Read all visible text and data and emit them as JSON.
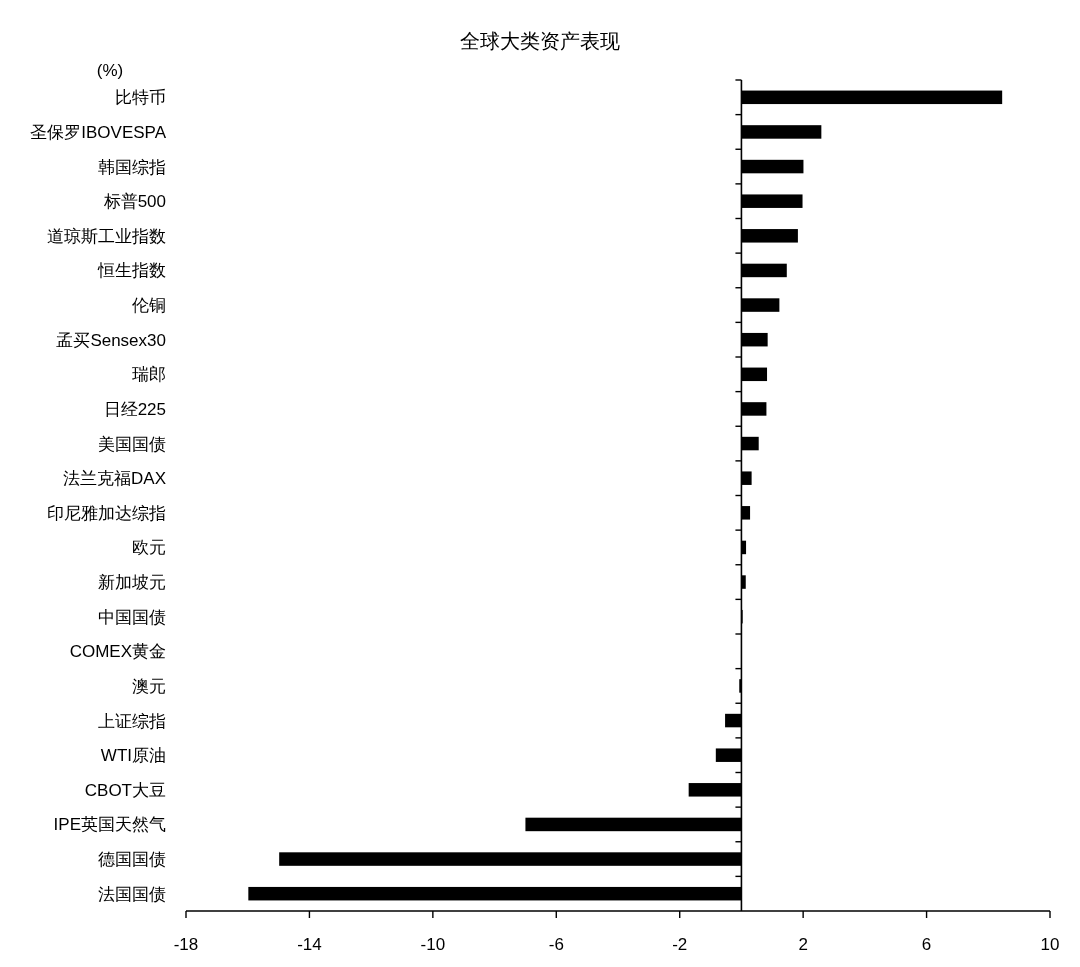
{
  "chart_data": {
    "type": "bar",
    "orientation": "horizontal",
    "title": "全球大类资产表现",
    "xlabel": "(%)",
    "categories": [
      "比特币",
      "圣保罗IBOVESPA",
      "韩国综指",
      "标普500",
      "道琼斯工业指数",
      "恒生指数",
      "伦铜",
      "孟买Sensex30",
      "瑞郎",
      "日经225",
      "美国国债",
      "法兰克福DAX",
      "印尼雅加达综指",
      "欧元",
      "新加坡元",
      "中国国债",
      "COMEX黄金",
      "澳元",
      "上证综指",
      "WTI原油",
      "CBOT大豆",
      "IPE英国天然气",
      "德国国债",
      "法国国债"
    ],
    "values": [
      8.45,
      2.59,
      2.01,
      1.98,
      1.83,
      1.47,
      1.23,
      0.85,
      0.83,
      0.81,
      0.56,
      0.33,
      0.28,
      0.15,
      0.14,
      0.04,
      0,
      -0.07,
      -0.53,
      -0.83,
      -1.71,
      -7.0,
      -14.98,
      -15.98
    ],
    "color": "#000000",
    "xlim": [
      -18,
      10
    ],
    "xticks": [
      -18,
      -14,
      -10,
      -6,
      -2,
      2,
      6,
      10
    ]
  }
}
